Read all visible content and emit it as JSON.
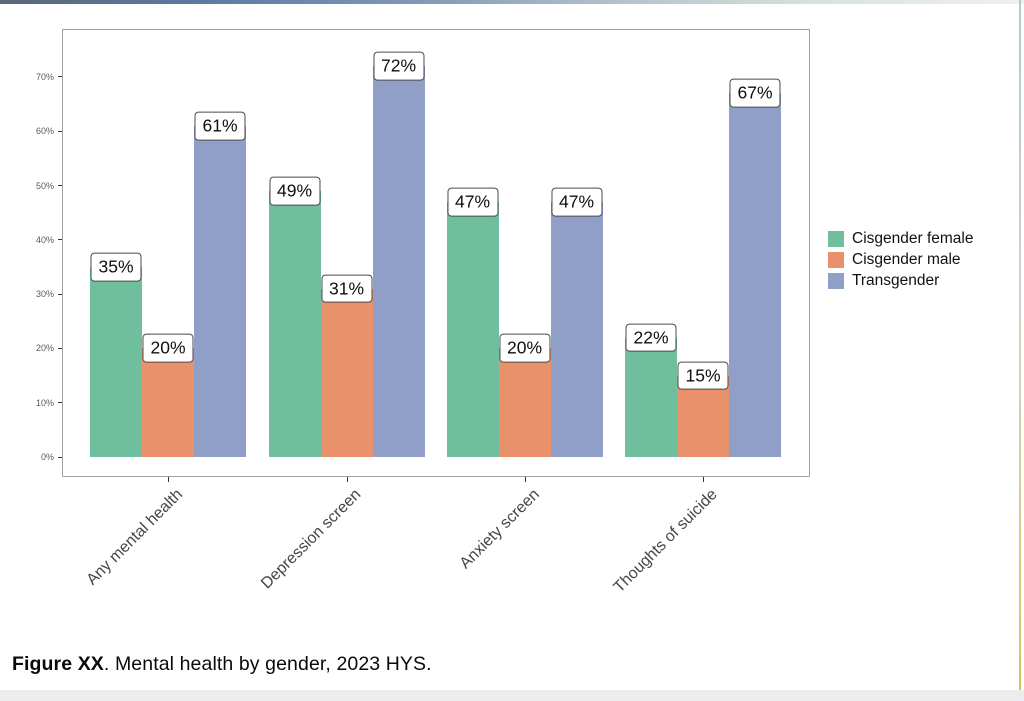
{
  "page": {
    "caption": {
      "bold": "Figure XX",
      "rest": ". Mental health by gender, 2023 HYS."
    },
    "decorations": {
      "top_strip": [
        "#5b6877 0%",
        "#5c7aa4 20%",
        "#7e97b4 40%",
        "#b3c1cd 60%",
        "#d8e2da 80%",
        "#eef2ee 100%"
      ],
      "right_edge": [
        "#b6cac1 0%",
        "#ccd5c5 45%",
        "#d6cd8d 75%",
        "#d4c263 100%"
      ],
      "bottom_strip": "#ececec"
    }
  },
  "chart_data": {
    "type": "bar",
    "categories": [
      "Any mental health",
      "Depression screen",
      "Anxiety screen",
      "Thoughts of suicide"
    ],
    "series": [
      {
        "name": "Cisgender female",
        "color": "#6fbe9e",
        "values": [
          35,
          49,
          47,
          22
        ]
      },
      {
        "name": "Cisgender male",
        "color": "#e9916a",
        "values": [
          20,
          31,
          20,
          15
        ]
      },
      {
        "name": "Transgender",
        "color": "#909fc7",
        "values": [
          61,
          72,
          47,
          67
        ]
      }
    ],
    "value_label_suffix": "%",
    "y_axis": {
      "tick_labels": [
        "0%",
        "10%",
        "20%",
        "30%",
        "40%",
        "50%",
        "60%",
        "70%"
      ],
      "tick_values": [
        0,
        10,
        20,
        30,
        40,
        50,
        60,
        70
      ],
      "range": [
        0,
        78.5
      ]
    },
    "legend_position": "right",
    "grid": false,
    "bar_value_labels_shown": true
  }
}
